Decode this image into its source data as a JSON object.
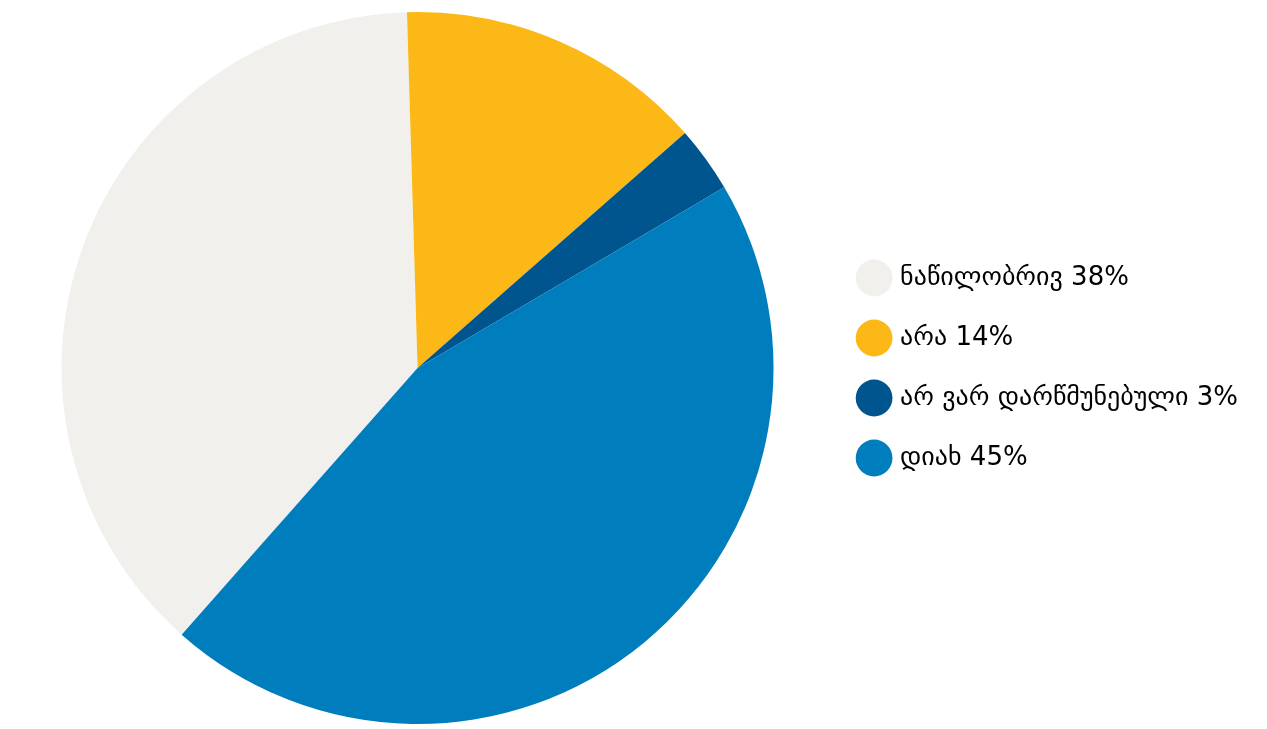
{
  "chart_data": {
    "type": "pie",
    "categories": [
      "ნაწილობრივ",
      "არა",
      "არ ვარ დარწმუნებული",
      "დიახ"
    ],
    "values": [
      38,
      14,
      3,
      45
    ],
    "value_labels": [
      "38%",
      "14%",
      "3%",
      "45%"
    ],
    "colors": [
      "#f1f0ed",
      "#fbb817",
      "#00558f",
      "#007dbc"
    ],
    "legend": "right"
  }
}
